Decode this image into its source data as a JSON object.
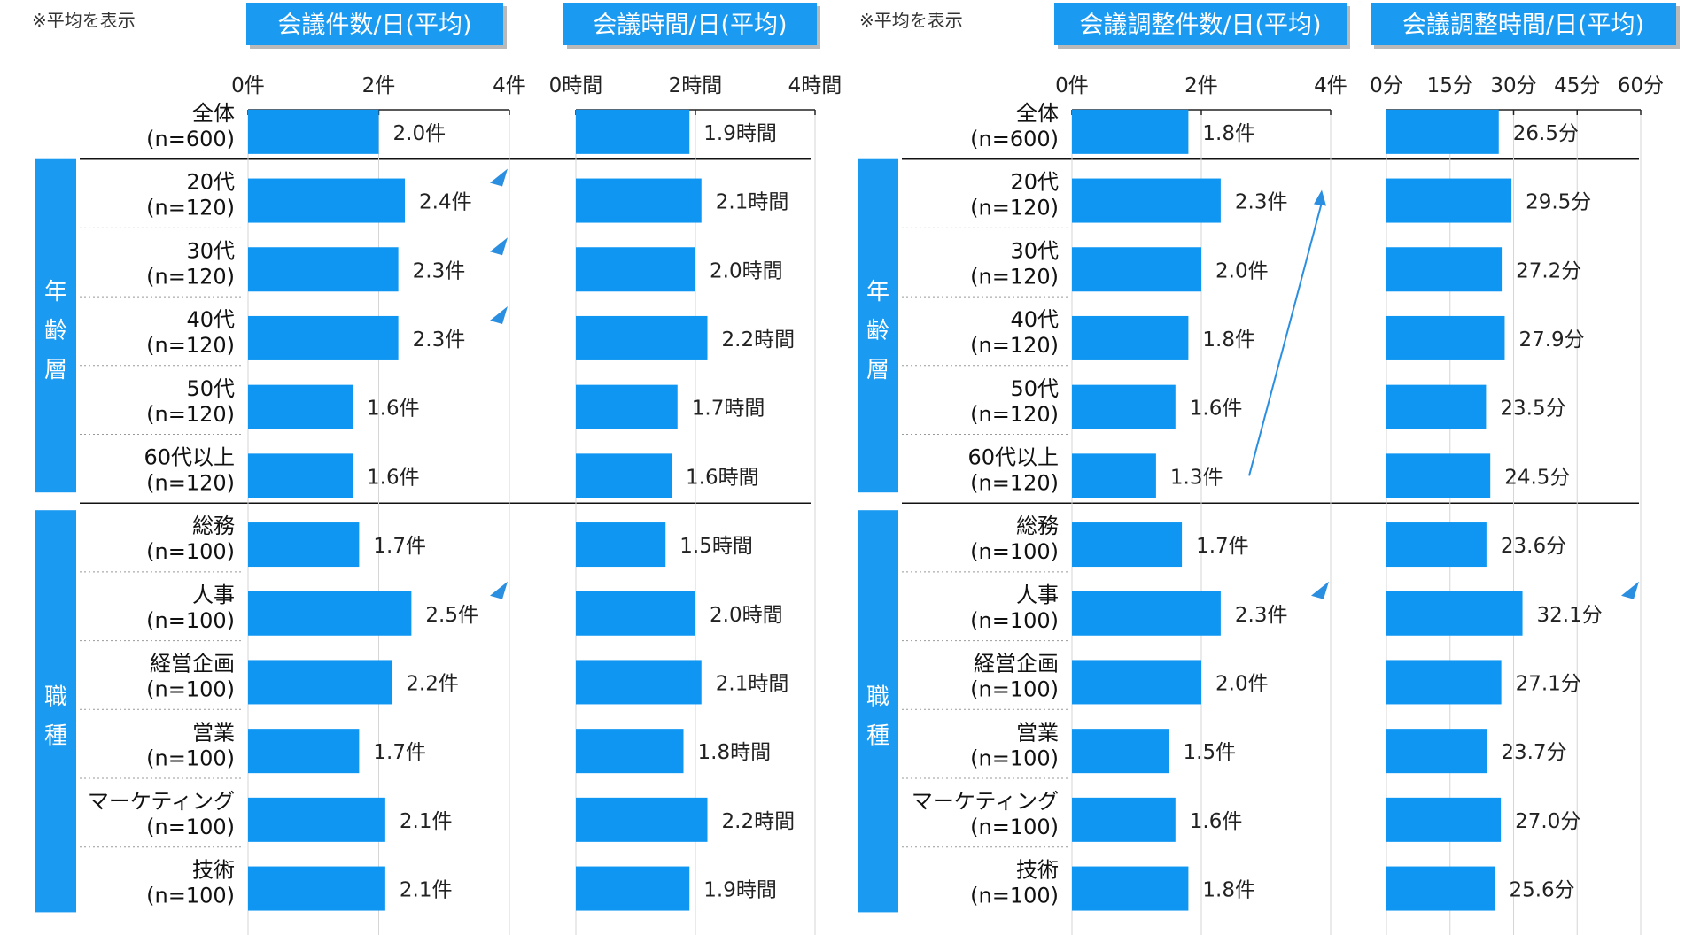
{
  "colors": {
    "bar": "#0f96f2",
    "header": "#1a9af0",
    "group": "#1a9af0",
    "arrow": "#2a8fe0"
  },
  "notes": [
    "※平均を表示",
    "※平均を表示"
  ],
  "groups": [
    "年齢層",
    "職種"
  ],
  "rows": [
    {
      "name": "全体",
      "n": "(n=600)"
    },
    {
      "name": "20代",
      "n": "(n=120)"
    },
    {
      "name": "30代",
      "n": "(n=120)"
    },
    {
      "name": "40代",
      "n": "(n=120)"
    },
    {
      "name": "50代",
      "n": "(n=120)"
    },
    {
      "name": "60代以上",
      "n": "(n=120)"
    },
    {
      "name": "総務",
      "n": "(n=100)"
    },
    {
      "name": "人事",
      "n": "(n=100)"
    },
    {
      "name": "経営企画",
      "n": "(n=100)"
    },
    {
      "name": "営業",
      "n": "(n=100)"
    },
    {
      "name": "マーケティング",
      "n": "(n=100)"
    },
    {
      "name": "技術",
      "n": "(n=100)"
    }
  ],
  "chart_data": [
    {
      "type": "bar",
      "orientation": "horizontal",
      "title": "会議件数/日(平均)",
      "categories": [
        "全体",
        "20代",
        "30代",
        "40代",
        "50代",
        "60代以上",
        "総務",
        "人事",
        "経営企画",
        "営業",
        "マーケティング",
        "技術"
      ],
      "values": [
        2.0,
        2.4,
        2.3,
        2.3,
        1.6,
        1.6,
        1.7,
        2.5,
        2.2,
        1.7,
        2.1,
        2.1
      ],
      "value_labels": [
        "2.0件",
        "2.4件",
        "2.3件",
        "2.3件",
        "1.6件",
        "1.6件",
        "1.7件",
        "2.5件",
        "2.2件",
        "1.7件",
        "2.1件",
        "2.1件"
      ],
      "xlim": [
        0,
        4
      ],
      "ticks": [
        0,
        2,
        4
      ],
      "tick_labels": [
        "0件",
        "2件",
        "4件"
      ],
      "highlight_markers": [
        1,
        2,
        3,
        7
      ]
    },
    {
      "type": "bar",
      "orientation": "horizontal",
      "title": "会議時間/日(平均)",
      "categories": [
        "全体",
        "20代",
        "30代",
        "40代",
        "50代",
        "60代以上",
        "総務",
        "人事",
        "経営企画",
        "営業",
        "マーケティング",
        "技術"
      ],
      "values": [
        1.9,
        2.1,
        2.0,
        2.2,
        1.7,
        1.6,
        1.5,
        2.0,
        2.1,
        1.8,
        2.2,
        1.9
      ],
      "value_labels": [
        "1.9時間",
        "2.1時間",
        "2.0時間",
        "2.2時間",
        "1.7時間",
        "1.6時間",
        "1.5時間",
        "2.0時間",
        "2.1時間",
        "1.8時間",
        "2.2時間",
        "1.9時間"
      ],
      "xlim": [
        0,
        4
      ],
      "ticks": [
        0,
        2,
        4
      ],
      "tick_labels": [
        "0時間",
        "2時間",
        "4時間"
      ],
      "highlight_markers": []
    },
    {
      "type": "bar",
      "orientation": "horizontal",
      "title": "会議調整件数/日(平均)",
      "categories": [
        "全体",
        "20代",
        "30代",
        "40代",
        "50代",
        "60代以上",
        "総務",
        "人事",
        "経営企画",
        "営業",
        "マーケティング",
        "技術"
      ],
      "values": [
        1.8,
        2.3,
        2.0,
        1.8,
        1.6,
        1.3,
        1.7,
        2.3,
        2.0,
        1.5,
        1.6,
        1.8
      ],
      "value_labels": [
        "1.8件",
        "2.3件",
        "2.0件",
        "1.8件",
        "1.6件",
        "1.3件",
        "1.7件",
        "2.3件",
        "2.0件",
        "1.5件",
        "1.6件",
        "1.8件"
      ],
      "xlim": [
        0,
        4
      ],
      "ticks": [
        0,
        2,
        4
      ],
      "tick_labels": [
        "0件",
        "2件",
        "4件"
      ],
      "highlight_markers": [
        7
      ],
      "trend_arrow": {
        "from_row": 5,
        "to_row": 1
      }
    },
    {
      "type": "bar",
      "orientation": "horizontal",
      "title": "会議調整時間/日(平均)",
      "categories": [
        "全体",
        "20代",
        "30代",
        "40代",
        "50代",
        "60代以上",
        "総務",
        "人事",
        "経営企画",
        "営業",
        "マーケティング",
        "技術"
      ],
      "values": [
        26.5,
        29.5,
        27.2,
        27.9,
        23.5,
        24.5,
        23.6,
        32.1,
        27.1,
        23.7,
        27.0,
        25.6
      ],
      "value_labels": [
        "26.5分",
        "29.5分",
        "27.2分",
        "27.9分",
        "23.5分",
        "24.5分",
        "23.6分",
        "32.1分",
        "27.1分",
        "23.7分",
        "27.0分",
        "25.6分"
      ],
      "xlim": [
        0,
        60
      ],
      "ticks": [
        0,
        15,
        30,
        45,
        60
      ],
      "tick_labels": [
        "0分",
        "15分",
        "30分",
        "45分",
        "60分"
      ],
      "highlight_markers": [
        7
      ]
    }
  ]
}
